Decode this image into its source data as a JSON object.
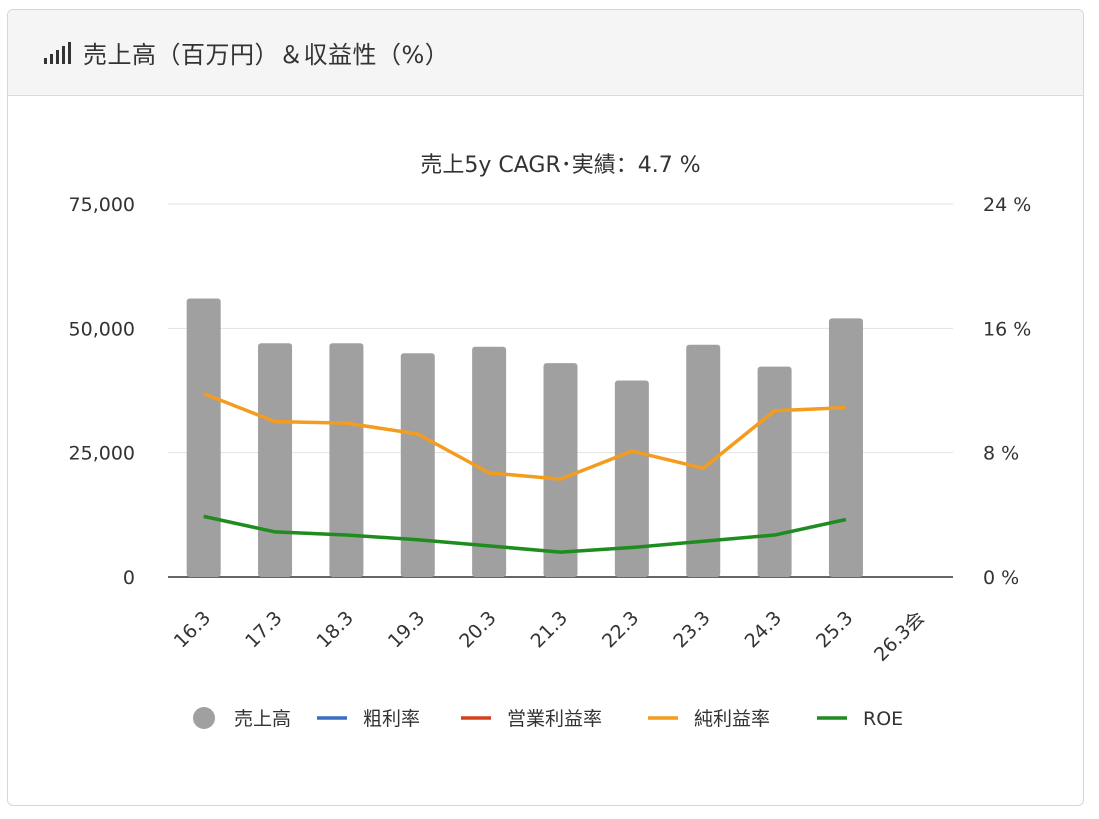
{
  "header": {
    "icon": "signal-bars-icon",
    "title": "売上高（百万円）＆収益性（%）"
  },
  "chart_data": {
    "type": "bar",
    "title": "売上5y CAGR･実績：4.7 %",
    "categories": [
      "16.3",
      "17.3",
      "18.3",
      "19.3",
      "20.3",
      "21.3",
      "22.3",
      "23.3",
      "24.3",
      "25.3",
      "26.3会"
    ],
    "y_left": {
      "ticks": [
        "75,000",
        "50,000",
        "25,000",
        "0"
      ],
      "ylim": [
        0,
        75000
      ]
    },
    "y_right": {
      "ticks": [
        "24 %",
        "16 %",
        "8 %",
        "0 %"
      ],
      "ylim": [
        0,
        24
      ]
    },
    "grid": true,
    "legend_position": "bottom",
    "series": [
      {
        "name": "売上高",
        "kind": "bar",
        "axis": "left",
        "color": "#a0a0a0",
        "values": [
          56000,
          47000,
          47000,
          45000,
          46300,
          43000,
          39500,
          46700,
          42300,
          52000,
          null
        ]
      },
      {
        "name": "粗利率",
        "kind": "line",
        "axis": "right",
        "color": "#3a6fc4",
        "values": [
          null,
          null,
          null,
          null,
          null,
          null,
          null,
          null,
          null,
          null,
          null
        ]
      },
      {
        "name": "営業利益率",
        "kind": "line",
        "axis": "right",
        "color": "#d8401c",
        "values": [
          null,
          null,
          null,
          null,
          null,
          null,
          null,
          null,
          null,
          null,
          null
        ]
      },
      {
        "name": "純利益率",
        "kind": "line",
        "axis": "right",
        "color": "#f39c1e",
        "values": [
          11.8,
          10.0,
          9.9,
          9.2,
          6.7,
          6.3,
          8.1,
          7.0,
          10.7,
          10.9,
          null
        ]
      },
      {
        "name": "ROE",
        "kind": "line",
        "axis": "right",
        "color": "#1f8c1f",
        "values": [
          3.9,
          2.9,
          2.7,
          2.4,
          2.0,
          1.6,
          1.9,
          2.3,
          2.7,
          3.7,
          null
        ]
      }
    ]
  }
}
